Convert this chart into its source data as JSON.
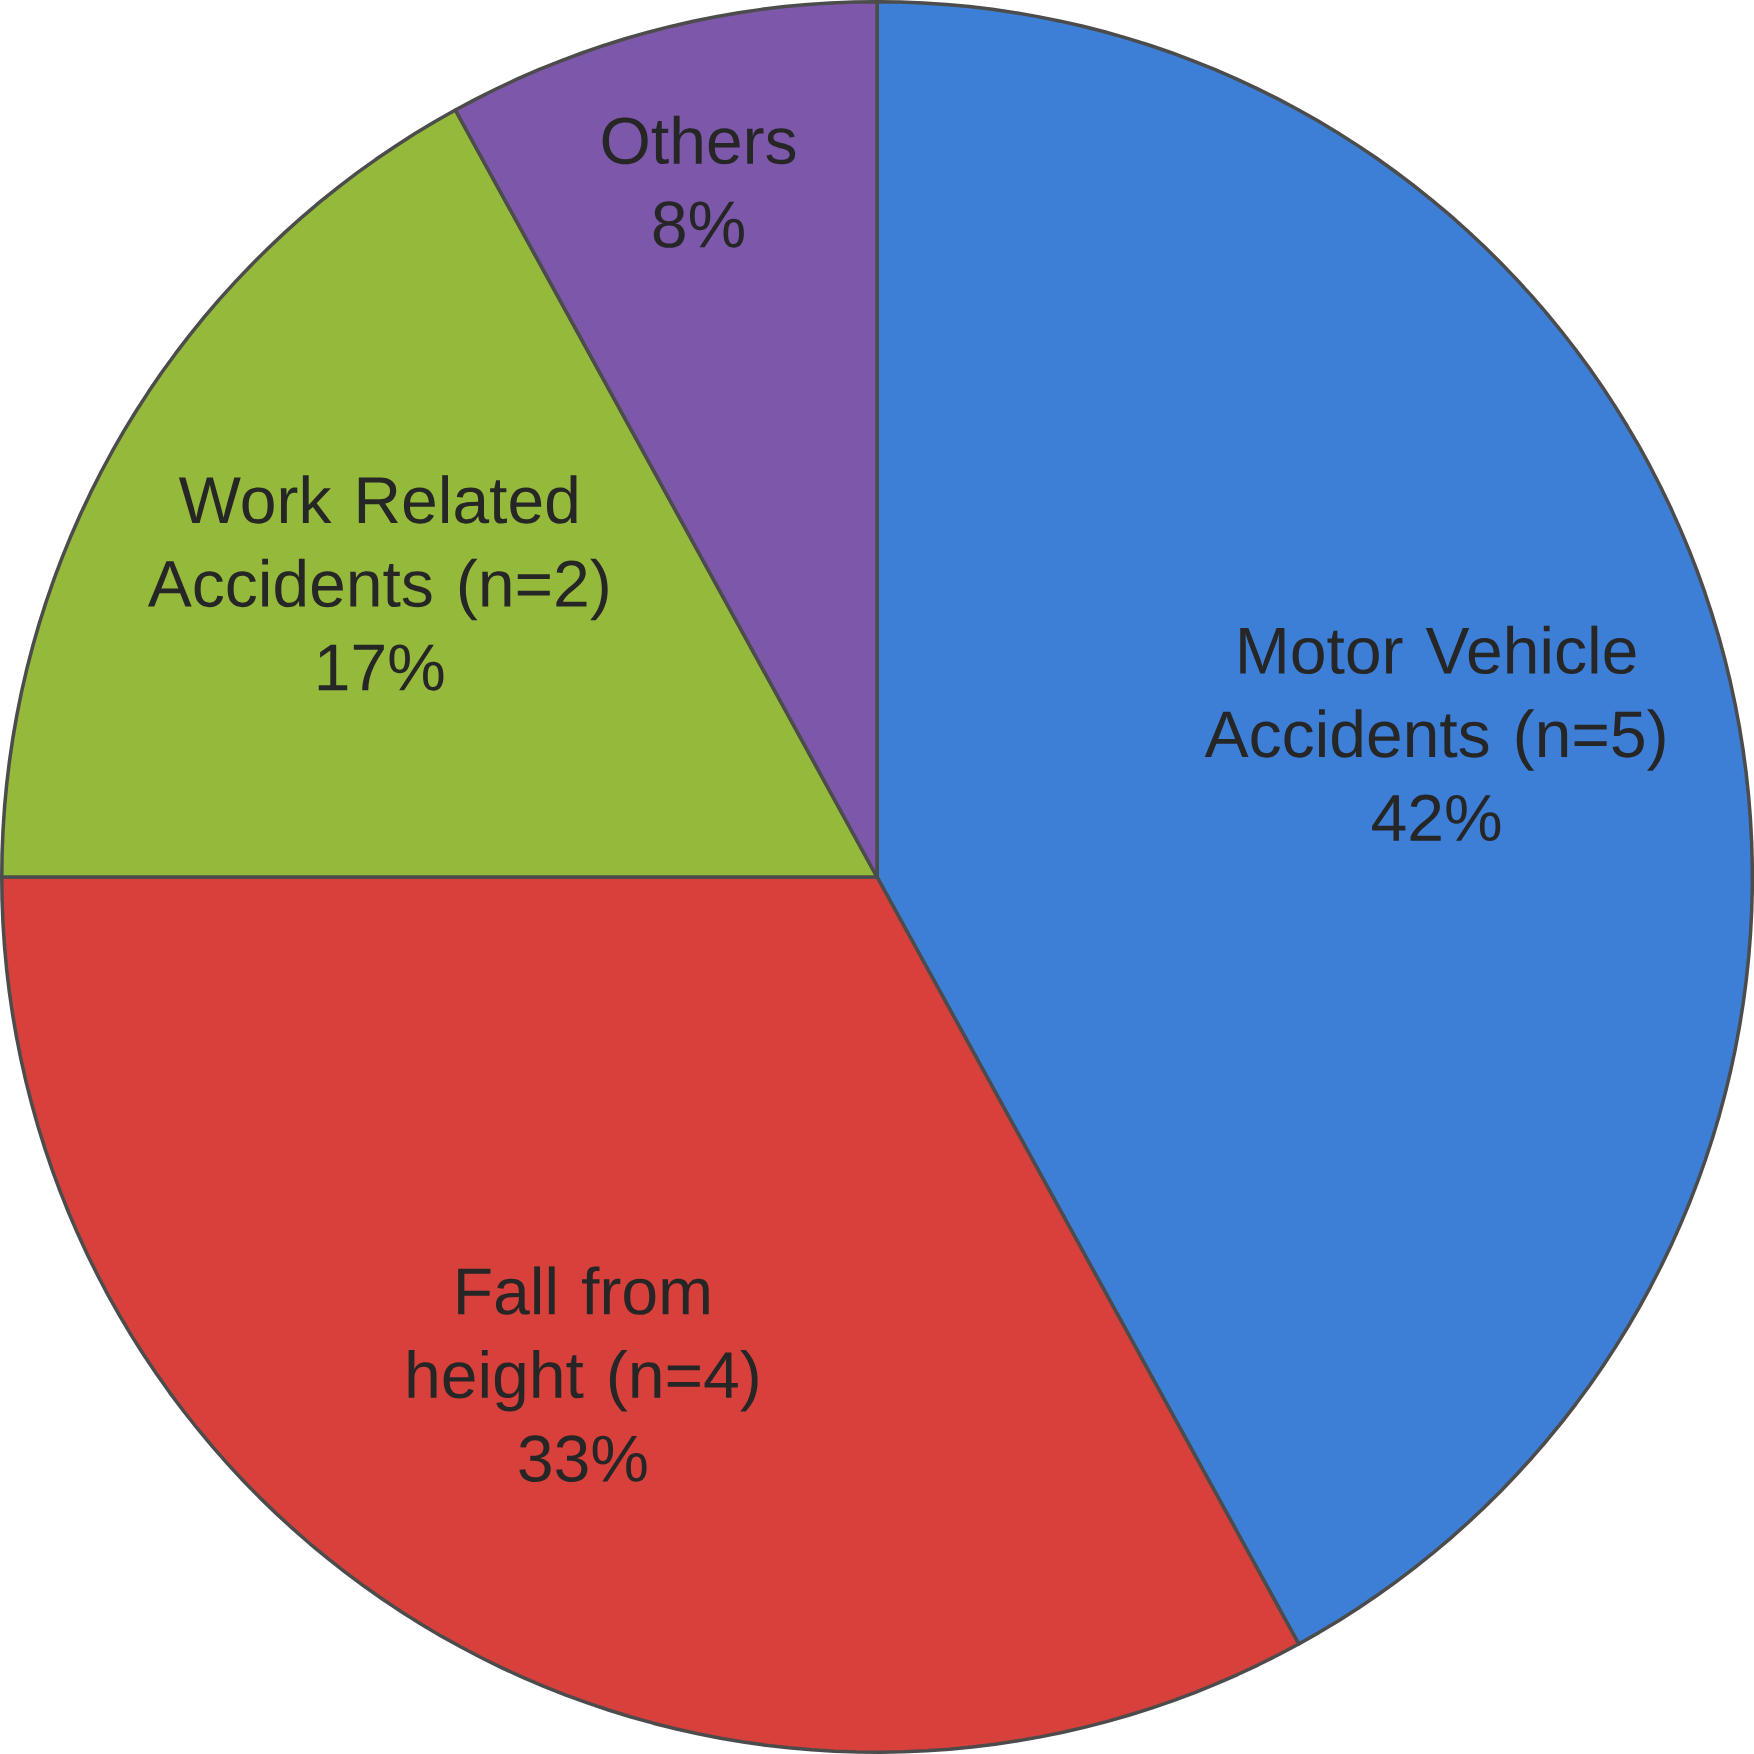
{
  "chart_data": {
    "type": "pie",
    "categories": [
      "Motor Vehicle Accidents (n=5)",
      "Fall from height (n=4)",
      "Work Related Accidents (n=2)",
      "Others"
    ],
    "values": [
      42,
      33,
      17,
      8
    ],
    "value_labels": [
      "42%",
      "33%",
      "17%",
      "8%"
    ],
    "colors": [
      "#3d7fd6",
      "#d8413b",
      "#94b93b",
      "#7d57a9"
    ]
  }
}
